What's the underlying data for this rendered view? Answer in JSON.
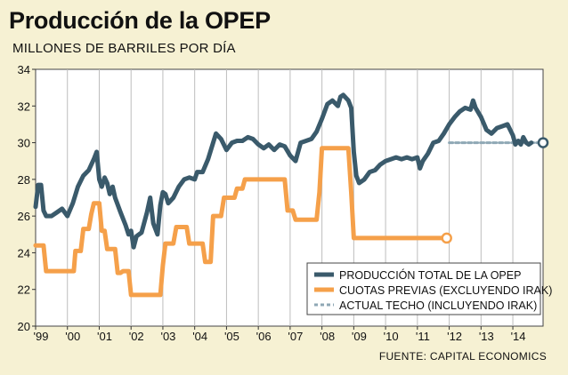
{
  "chart_data": {
    "type": "line",
    "title": "Producción de la OPEP",
    "subtitle": "MILLONES DE BARRILES POR DÍA",
    "source": "FUENTE: CAPITAL ECONOMICS",
    "xlabel": "",
    "ylabel": "",
    "ylim": [
      20,
      34
    ],
    "yticks": [
      20,
      22,
      24,
      26,
      28,
      30,
      32,
      34
    ],
    "xlim": [
      1999,
      2014.95
    ],
    "xticks": [
      {
        "x": 1999,
        "label": "'99"
      },
      {
        "x": 2000,
        "label": "'00"
      },
      {
        "x": 2001,
        "label": "'01"
      },
      {
        "x": 2002,
        "label": "'02"
      },
      {
        "x": 2003,
        "label": "'03"
      },
      {
        "x": 2004,
        "label": "'04"
      },
      {
        "x": 2005,
        "label": "'05"
      },
      {
        "x": 2006,
        "label": "'06"
      },
      {
        "x": 2007,
        "label": "'07"
      },
      {
        "x": 2008,
        "label": "'08"
      },
      {
        "x": 2009,
        "label": "'09"
      },
      {
        "x": 2010,
        "label": "'10"
      },
      {
        "x": 2011,
        "label": "'11"
      },
      {
        "x": 2012,
        "label": "'12"
      },
      {
        "x": 2013,
        "label": "'13"
      },
      {
        "x": 2014,
        "label": "'14"
      }
    ],
    "grid": "vertical",
    "legend_position": "bottom-right",
    "series": [
      {
        "name": "PRODUCCIÓN TOTAL DE LA OPEP",
        "color": "#3a5a6b",
        "style": "solid",
        "points": [
          [
            1999.0,
            26.5
          ],
          [
            1999.08,
            27.7
          ],
          [
            1999.17,
            27.7
          ],
          [
            1999.25,
            26.3
          ],
          [
            1999.33,
            26.0
          ],
          [
            1999.5,
            26.0
          ],
          [
            1999.67,
            26.2
          ],
          [
            1999.83,
            26.4
          ],
          [
            2000.0,
            26.0
          ],
          [
            2000.17,
            26.7
          ],
          [
            2000.33,
            27.6
          ],
          [
            2000.5,
            28.2
          ],
          [
            2000.67,
            28.5
          ],
          [
            2000.83,
            29.1
          ],
          [
            2000.92,
            29.5
          ],
          [
            2001.0,
            28.0
          ],
          [
            2001.08,
            27.6
          ],
          [
            2001.17,
            28.1
          ],
          [
            2001.25,
            27.8
          ],
          [
            2001.33,
            27.2
          ],
          [
            2001.42,
            27.6
          ],
          [
            2001.5,
            27.0
          ],
          [
            2001.67,
            26.2
          ],
          [
            2001.83,
            25.5
          ],
          [
            2001.92,
            25.0
          ],
          [
            2002.0,
            25.2
          ],
          [
            2002.08,
            24.3
          ],
          [
            2002.17,
            24.9
          ],
          [
            2002.33,
            25.1
          ],
          [
            2002.5,
            26.2
          ],
          [
            2002.6,
            27.0
          ],
          [
            2002.7,
            25.6
          ],
          [
            2002.83,
            25.0
          ],
          [
            2002.92,
            26.6
          ],
          [
            2003.0,
            27.3
          ],
          [
            2003.08,
            27.2
          ],
          [
            2003.17,
            26.7
          ],
          [
            2003.33,
            27.0
          ],
          [
            2003.5,
            27.6
          ],
          [
            2003.67,
            28.0
          ],
          [
            2003.83,
            28.1
          ],
          [
            2004.0,
            28.0
          ],
          [
            2004.08,
            28.4
          ],
          [
            2004.25,
            28.4
          ],
          [
            2004.42,
            29.1
          ],
          [
            2004.58,
            30.0
          ],
          [
            2004.67,
            30.5
          ],
          [
            2004.83,
            30.2
          ],
          [
            2005.0,
            29.6
          ],
          [
            2005.17,
            30.0
          ],
          [
            2005.33,
            30.1
          ],
          [
            2005.5,
            30.1
          ],
          [
            2005.67,
            30.3
          ],
          [
            2005.83,
            30.2
          ],
          [
            2006.0,
            29.9
          ],
          [
            2006.17,
            29.7
          ],
          [
            2006.33,
            29.9
          ],
          [
            2006.5,
            29.6
          ],
          [
            2006.67,
            29.9
          ],
          [
            2006.83,
            29.8
          ],
          [
            2007.0,
            29.3
          ],
          [
            2007.17,
            29.0
          ],
          [
            2007.33,
            30.0
          ],
          [
            2007.5,
            30.1
          ],
          [
            2007.67,
            30.2
          ],
          [
            2007.83,
            30.6
          ],
          [
            2008.0,
            31.3
          ],
          [
            2008.17,
            32.1
          ],
          [
            2008.33,
            32.3
          ],
          [
            2008.5,
            32.0
          ],
          [
            2008.58,
            32.5
          ],
          [
            2008.67,
            32.6
          ],
          [
            2008.83,
            32.3
          ],
          [
            2008.92,
            31.9
          ],
          [
            2009.0,
            29.5
          ],
          [
            2009.08,
            28.2
          ],
          [
            2009.17,
            27.8
          ],
          [
            2009.33,
            28.0
          ],
          [
            2009.5,
            28.4
          ],
          [
            2009.67,
            28.5
          ],
          [
            2009.83,
            28.8
          ],
          [
            2010.0,
            29.0
          ],
          [
            2010.17,
            29.1
          ],
          [
            2010.33,
            29.2
          ],
          [
            2010.5,
            29.1
          ],
          [
            2010.67,
            29.2
          ],
          [
            2010.83,
            29.1
          ],
          [
            2011.0,
            29.2
          ],
          [
            2011.08,
            28.6
          ],
          [
            2011.17,
            29.0
          ],
          [
            2011.33,
            29.4
          ],
          [
            2011.5,
            30.0
          ],
          [
            2011.67,
            30.1
          ],
          [
            2011.83,
            30.5
          ],
          [
            2012.0,
            31.0
          ],
          [
            2012.17,
            31.4
          ],
          [
            2012.33,
            31.7
          ],
          [
            2012.5,
            31.9
          ],
          [
            2012.67,
            31.8
          ],
          [
            2012.75,
            32.3
          ],
          [
            2012.83,
            31.9
          ],
          [
            2013.0,
            31.4
          ],
          [
            2013.17,
            30.7
          ],
          [
            2013.33,
            30.5
          ],
          [
            2013.5,
            30.8
          ],
          [
            2013.67,
            30.9
          ],
          [
            2013.83,
            31.0
          ],
          [
            2014.0,
            30.4
          ],
          [
            2014.08,
            29.9
          ],
          [
            2014.17,
            30.1
          ],
          [
            2014.25,
            29.9
          ],
          [
            2014.33,
            30.3
          ],
          [
            2014.42,
            30.0
          ],
          [
            2014.5,
            29.9
          ],
          [
            2014.58,
            30.0
          ]
        ]
      },
      {
        "name": "CUOTAS PREVIAS (EXCLUYENDO IRAK)",
        "color": "#f5a04a",
        "style": "solid",
        "points": [
          [
            1999.0,
            24.4
          ],
          [
            1999.25,
            24.4
          ],
          [
            1999.33,
            23.0
          ],
          [
            2000.2,
            23.0
          ],
          [
            2000.25,
            24.1
          ],
          [
            2000.42,
            24.1
          ],
          [
            2000.5,
            25.3
          ],
          [
            2000.67,
            25.3
          ],
          [
            2000.75,
            26.1
          ],
          [
            2000.83,
            26.7
          ],
          [
            2001.0,
            26.7
          ],
          [
            2001.08,
            25.2
          ],
          [
            2001.17,
            25.2
          ],
          [
            2001.25,
            24.2
          ],
          [
            2001.42,
            24.2
          ],
          [
            2001.5,
            24.2
          ],
          [
            2001.58,
            22.9
          ],
          [
            2001.67,
            22.9
          ],
          [
            2001.75,
            23.0
          ],
          [
            2001.92,
            23.0
          ],
          [
            2002.0,
            21.7
          ],
          [
            2002.92,
            21.7
          ],
          [
            2003.0,
            23.3
          ],
          [
            2003.08,
            24.5
          ],
          [
            2003.33,
            24.5
          ],
          [
            2003.42,
            25.4
          ],
          [
            2003.75,
            25.4
          ],
          [
            2003.83,
            24.5
          ],
          [
            2004.25,
            24.5
          ],
          [
            2004.33,
            23.5
          ],
          [
            2004.5,
            23.5
          ],
          [
            2004.58,
            26.0
          ],
          [
            2004.83,
            26.0
          ],
          [
            2004.92,
            27.0
          ],
          [
            2005.25,
            27.0
          ],
          [
            2005.33,
            27.5
          ],
          [
            2005.5,
            27.5
          ],
          [
            2005.58,
            28.0
          ],
          [
            2006.83,
            28.0
          ],
          [
            2006.92,
            26.3
          ],
          [
            2007.08,
            26.3
          ],
          [
            2007.17,
            25.8
          ],
          [
            2007.83,
            25.8
          ],
          [
            2007.92,
            27.3
          ],
          [
            2008.0,
            29.7
          ],
          [
            2008.83,
            29.7
          ],
          [
            2008.92,
            27.3
          ],
          [
            2009.0,
            24.8
          ],
          [
            2011.92,
            24.8
          ]
        ],
        "end_marker": true
      },
      {
        "name": "ACTUAL TECHO (INCLUYENDO IRAK)",
        "color": "#8fa8b5",
        "style": "dashed",
        "points": [
          [
            2012.0,
            30.0
          ],
          [
            2014.95,
            30.0
          ]
        ],
        "end_marker": true
      }
    ]
  }
}
